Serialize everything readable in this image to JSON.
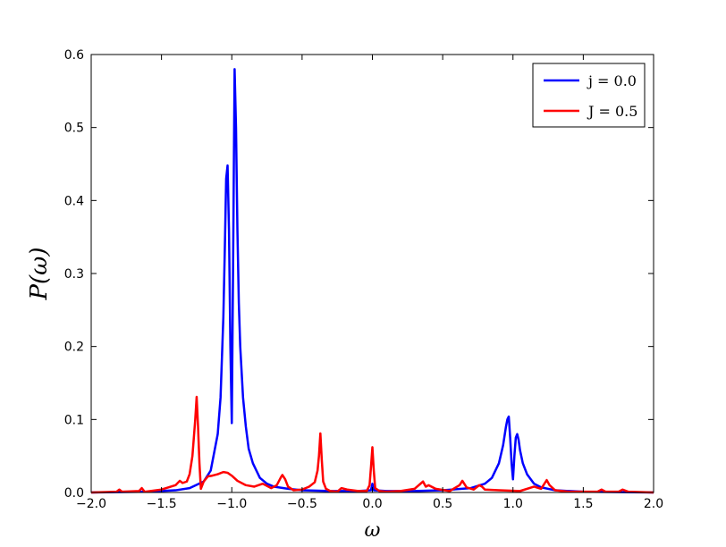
{
  "chart_data": {
    "type": "line",
    "title": "",
    "xlabel": "ω",
    "ylabel": "P(ω)",
    "xlim": [
      -2.0,
      2.0
    ],
    "ylim": [
      0.0,
      0.6
    ],
    "xticks": [
      "−2.0",
      "−1.5",
      "−1.0",
      "−0.5",
      "0.0",
      "0.5",
      "1.0",
      "1.5",
      "2.0"
    ],
    "yticks": [
      "0.0",
      "0.1",
      "0.2",
      "0.3",
      "0.4",
      "0.5",
      "0.6"
    ],
    "grid": false,
    "legend_position": "top-right",
    "series": [
      {
        "name": "j = 0.0",
        "color": "#0000ff",
        "x": [
          -2.0,
          -1.6,
          -1.4,
          -1.3,
          -1.2,
          -1.15,
          -1.1,
          -1.08,
          -1.06,
          -1.05,
          -1.04,
          -1.03,
          -1.02,
          -1.01,
          -1.0,
          -0.99,
          -0.98,
          -0.97,
          -0.96,
          -0.95,
          -0.94,
          -0.92,
          -0.9,
          -0.88,
          -0.85,
          -0.8,
          -0.75,
          -0.7,
          -0.6,
          -0.5,
          -0.3,
          -0.1,
          -0.01,
          0.0,
          0.01,
          0.1,
          0.3,
          0.5,
          0.7,
          0.8,
          0.85,
          0.9,
          0.93,
          0.95,
          0.96,
          0.97,
          0.98,
          0.99,
          1.0,
          1.01,
          1.02,
          1.03,
          1.04,
          1.05,
          1.07,
          1.1,
          1.15,
          1.2,
          1.3,
          1.5,
          2.0
        ],
        "y": [
          0.0,
          0.001,
          0.003,
          0.006,
          0.015,
          0.03,
          0.08,
          0.13,
          0.24,
          0.33,
          0.43,
          0.448,
          0.36,
          0.2,
          0.095,
          0.33,
          0.58,
          0.5,
          0.36,
          0.26,
          0.2,
          0.13,
          0.09,
          0.06,
          0.04,
          0.02,
          0.012,
          0.008,
          0.005,
          0.003,
          0.002,
          0.002,
          0.003,
          0.012,
          0.003,
          0.002,
          0.002,
          0.003,
          0.006,
          0.012,
          0.02,
          0.04,
          0.065,
          0.09,
          0.1,
          0.104,
          0.075,
          0.04,
          0.018,
          0.05,
          0.075,
          0.08,
          0.072,
          0.058,
          0.04,
          0.025,
          0.012,
          0.007,
          0.003,
          0.001,
          0.0
        ]
      },
      {
        "name": "J = 0.5",
        "color": "#ff0000",
        "x": [
          -2.0,
          -1.82,
          -1.8,
          -1.78,
          -1.66,
          -1.64,
          -1.62,
          -1.5,
          -1.4,
          -1.37,
          -1.35,
          -1.32,
          -1.3,
          -1.28,
          -1.26,
          -1.25,
          -1.24,
          -1.23,
          -1.22,
          -1.2,
          -1.17,
          -1.14,
          -1.1,
          -1.06,
          -1.03,
          -1.0,
          -0.96,
          -0.9,
          -0.84,
          -0.78,
          -0.72,
          -0.68,
          -0.65,
          -0.64,
          -0.62,
          -0.6,
          -0.56,
          -0.5,
          -0.45,
          -0.41,
          -0.39,
          -0.38,
          -0.37,
          -0.36,
          -0.35,
          -0.33,
          -0.3,
          -0.25,
          -0.22,
          -0.18,
          -0.1,
          -0.04,
          -0.02,
          -0.01,
          0.0,
          0.01,
          0.02,
          0.05,
          0.1,
          0.2,
          0.3,
          0.36,
          0.38,
          0.4,
          0.45,
          0.55,
          0.62,
          0.64,
          0.67,
          0.72,
          0.76,
          0.78,
          0.8,
          0.9,
          1.05,
          1.15,
          1.2,
          1.24,
          1.26,
          1.3,
          1.4,
          1.6,
          1.63,
          1.66,
          1.75,
          1.78,
          1.82,
          2.0
        ],
        "y": [
          0.0,
          0.001,
          0.004,
          0.001,
          0.002,
          0.006,
          0.001,
          0.004,
          0.01,
          0.016,
          0.013,
          0.015,
          0.025,
          0.05,
          0.1,
          0.131,
          0.09,
          0.04,
          0.005,
          0.015,
          0.022,
          0.023,
          0.025,
          0.028,
          0.027,
          0.023,
          0.016,
          0.01,
          0.008,
          0.012,
          0.006,
          0.01,
          0.021,
          0.024,
          0.018,
          0.008,
          0.003,
          0.004,
          0.008,
          0.014,
          0.03,
          0.05,
          0.081,
          0.045,
          0.015,
          0.005,
          0.002,
          0.001,
          0.006,
          0.004,
          0.002,
          0.002,
          0.01,
          0.035,
          0.062,
          0.03,
          0.006,
          0.002,
          0.001,
          0.002,
          0.005,
          0.015,
          0.008,
          0.01,
          0.005,
          0.002,
          0.01,
          0.016,
          0.007,
          0.004,
          0.01,
          0.008,
          0.004,
          0.003,
          0.002,
          0.008,
          0.005,
          0.017,
          0.01,
          0.003,
          0.001,
          0.001,
          0.004,
          0.001,
          0.001,
          0.004,
          0.001,
          0.0
        ]
      }
    ]
  }
}
